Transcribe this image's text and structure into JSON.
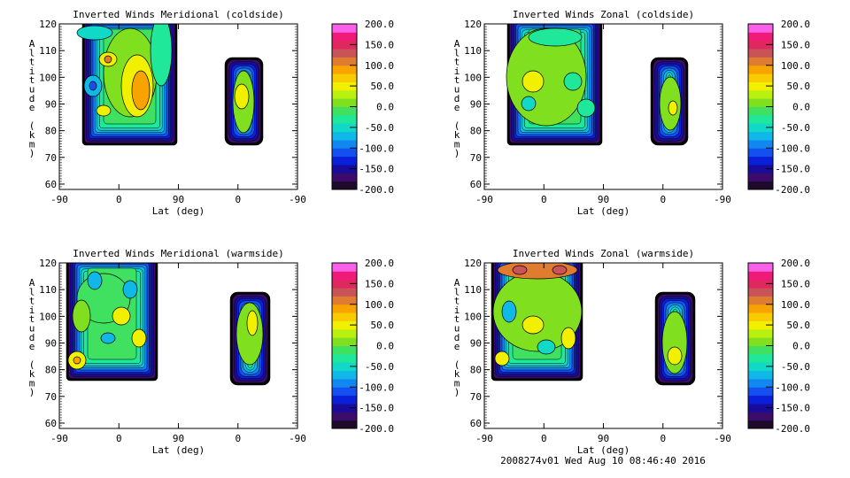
{
  "footer": "2008274v01 Wed Aug 10 08:46:40 2016",
  "colorbar": {
    "labels": [
      "200.0",
      "150.0",
      "100.0",
      "50.0",
      "0.0",
      "-50.0",
      "-100.0",
      "-150.0",
      "-200.0"
    ],
    "range": [
      -200,
      200
    ],
    "colors": [
      "#1e0a2a",
      "#3c0c6a",
      "#1a0c9a",
      "#0a20d8",
      "#1450f0",
      "#1088f0",
      "#10b8e8",
      "#12d8c8",
      "#20e89a",
      "#40e060",
      "#80e020",
      "#b8f010",
      "#f0f000",
      "#f8cc00",
      "#f8a400",
      "#e07c30",
      "#c85458",
      "#e02860",
      "#f01a78",
      "#f860e8"
    ]
  },
  "chart_data": [
    {
      "type": "heatmap",
      "title": "Inverted Winds Meridional (coldside)",
      "xlabel": "Lat (deg)",
      "ylabel": "Altitude (km)",
      "xticks": [
        "-90",
        "0",
        "90",
        "0",
        "-90"
      ],
      "yticks": [
        "60",
        "70",
        "80",
        "90",
        "100",
        "110",
        "120"
      ],
      "ylim": [
        58,
        120
      ],
      "value_range": [
        -200,
        200
      ]
    },
    {
      "type": "heatmap",
      "title": "Inverted Winds Zonal (coldside)",
      "xlabel": "Lat (deg)",
      "ylabel": "Altitude (km)",
      "xticks": [
        "-90",
        "0",
        "90",
        "0",
        "-90"
      ],
      "yticks": [
        "60",
        "70",
        "80",
        "90",
        "100",
        "110",
        "120"
      ],
      "ylim": [
        58,
        120
      ],
      "value_range": [
        -200,
        200
      ]
    },
    {
      "type": "heatmap",
      "title": "Inverted Winds Meridional (warmside)",
      "xlabel": "Lat (deg)",
      "ylabel": "Altitude (km)",
      "xticks": [
        "-90",
        "0",
        "90",
        "0",
        "-90"
      ],
      "yticks": [
        "60",
        "70",
        "80",
        "90",
        "100",
        "110",
        "120"
      ],
      "ylim": [
        58,
        120
      ],
      "value_range": [
        -200,
        200
      ]
    },
    {
      "type": "heatmap",
      "title": "Inverted Winds Zonal (warmside)",
      "xlabel": "Lat (deg)",
      "ylabel": "Altitude (km)",
      "xticks": [
        "-90",
        "0",
        "90",
        "0",
        "-90"
      ],
      "yticks": [
        "60",
        "70",
        "80",
        "90",
        "100",
        "110",
        "120"
      ],
      "ylim": [
        58,
        120
      ],
      "value_range": [
        -200,
        200
      ]
    }
  ]
}
